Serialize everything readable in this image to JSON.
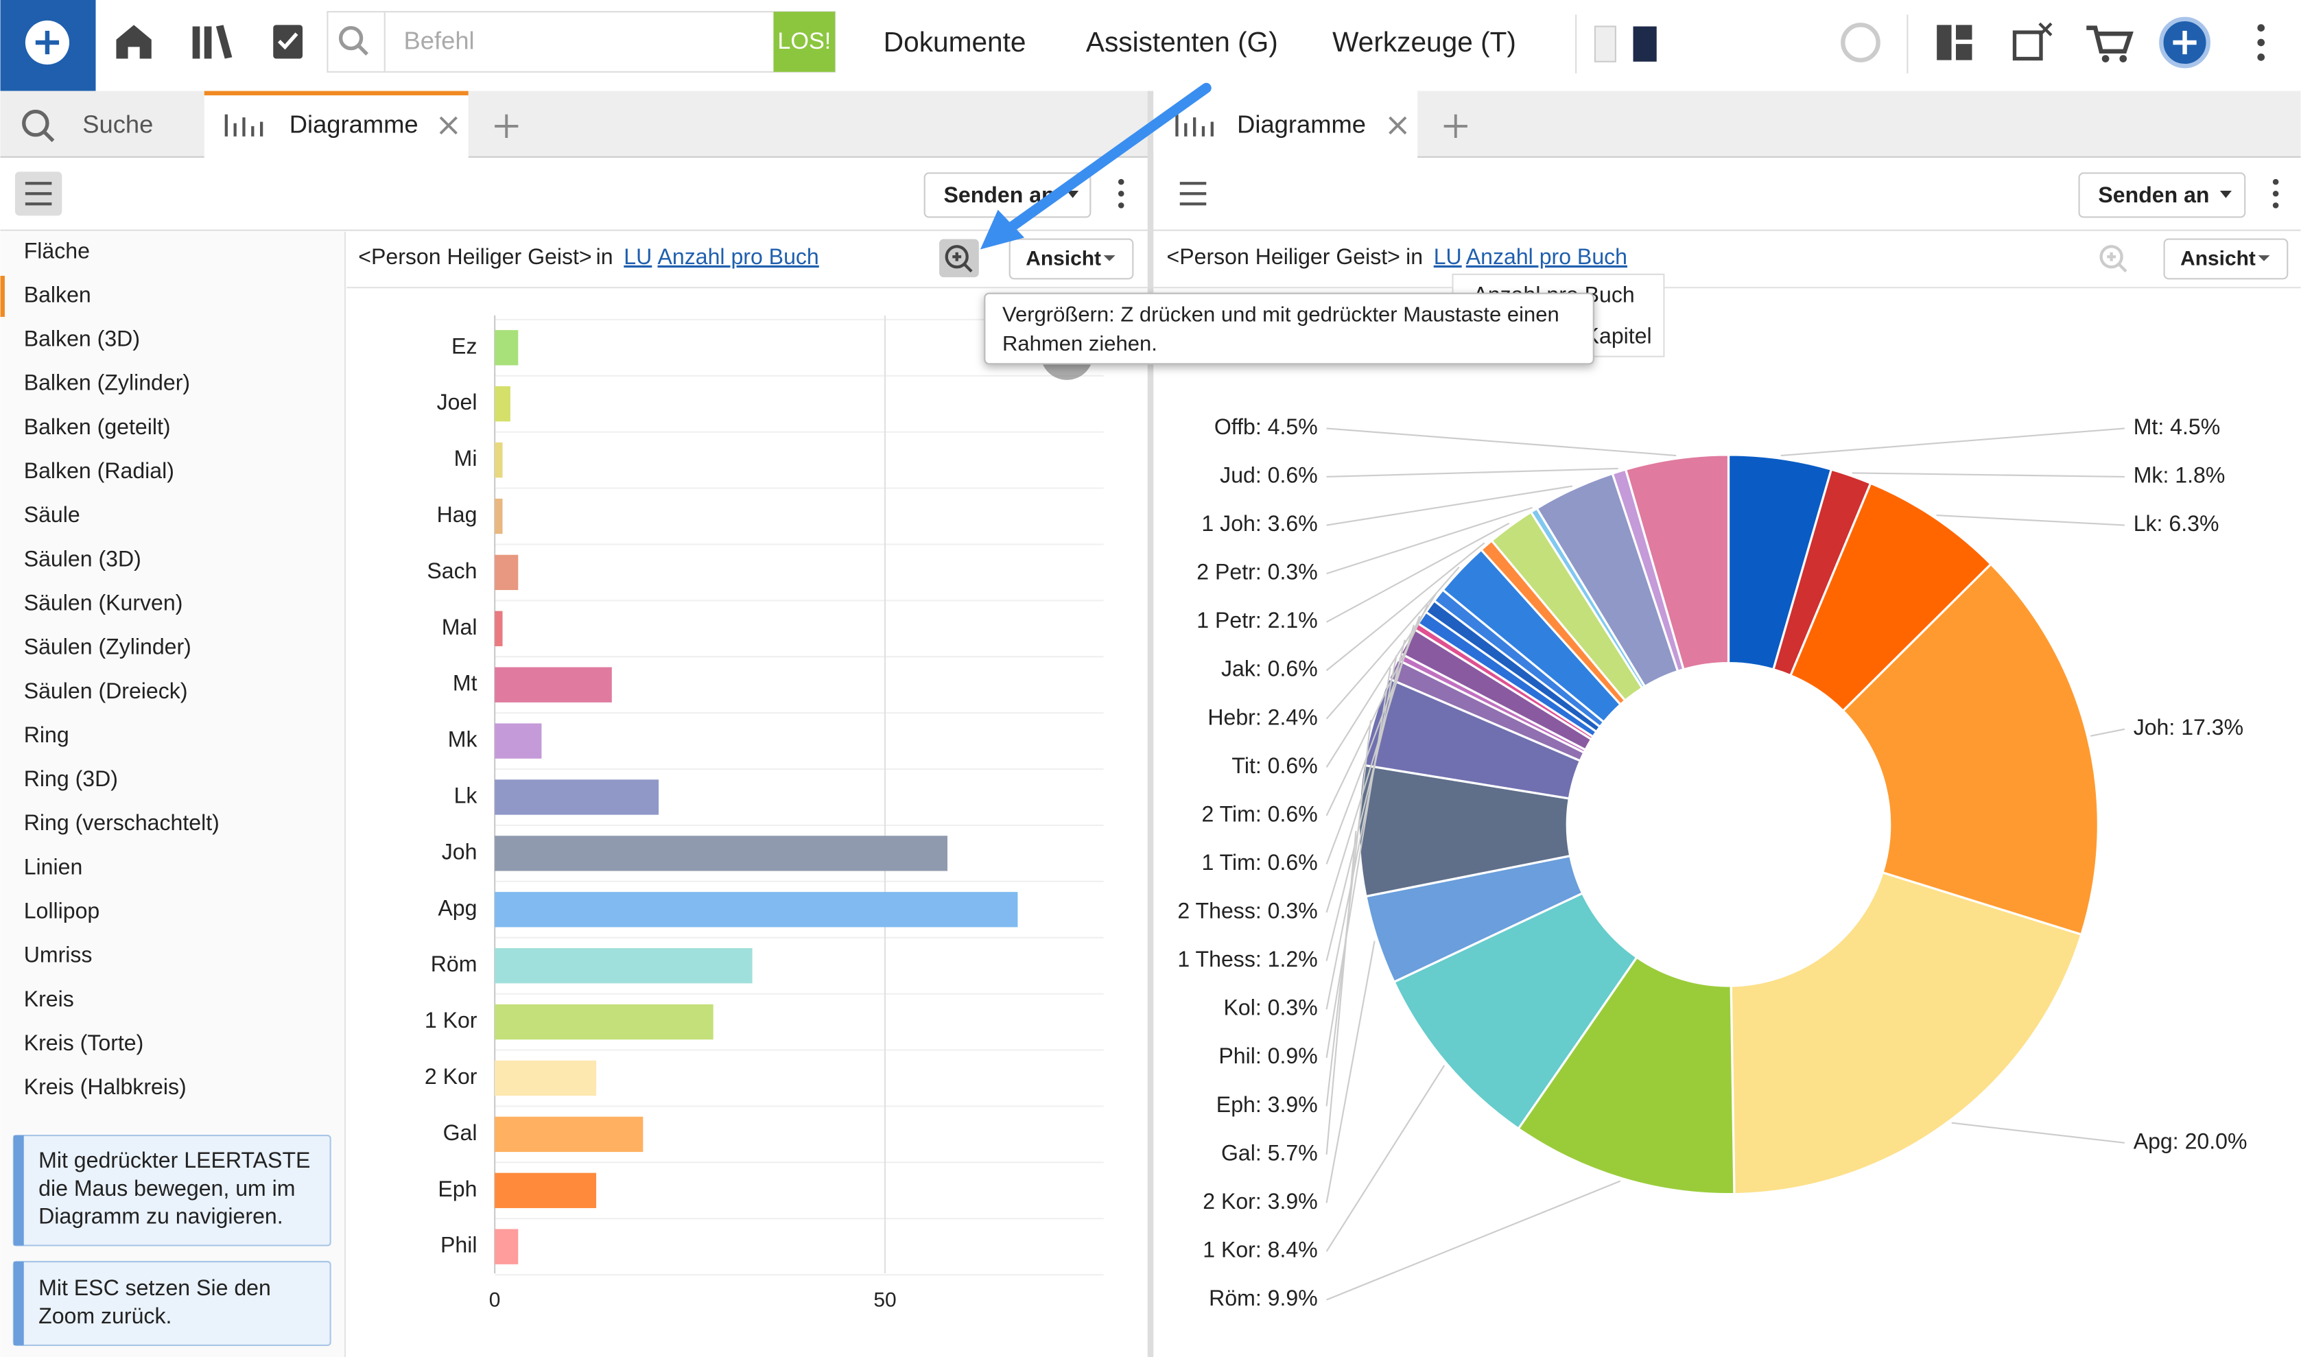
{
  "toolbar": {
    "search_placeholder": "Befehl",
    "go": "LOS!",
    "menu": [
      "Dokumente",
      "Assistenten (G)",
      "Werkzeuge (T)"
    ]
  },
  "tabs_left": [
    "Suche",
    "Diagramme"
  ],
  "tabs_right": [
    "Diagramme"
  ],
  "send": "Senden an",
  "view": "Ansicht",
  "query": {
    "prefix": "<Person Heiliger Geist>",
    "in": "in",
    "lu": "LU",
    "measure": "Anzahl pro Buch"
  },
  "dropdown": [
    "Anzahl pro Buch",
    "Anzahl pro Kapitel"
  ],
  "tooltip": "Vergrößern: Z drücken und mit gedrückter Maustaste einen Rahmen ziehen.",
  "sidebar": {
    "items": [
      "Fläche",
      "Balken",
      "Balken (3D)",
      "Balken (Zylinder)",
      "Balken (geteilt)",
      "Balken (Radial)",
      "Säule",
      "Säulen (3D)",
      "Säulen (Kurven)",
      "Säulen (Zylinder)",
      "Säulen (Dreieck)",
      "Ring",
      "Ring (3D)",
      "Ring (verschachtelt)",
      "Linien",
      "Lollipop",
      "Umriss",
      "Kreis",
      "Kreis (Torte)",
      "Kreis (Halbkreis)"
    ],
    "hints": [
      "Mit gedrückter LEERTASTE die Maus bewegen, um im Diagramm zu navigieren.",
      "Mit ESC setzen Sie den Zoom zurück."
    ]
  },
  "chart_data": [
    {
      "type": "bar",
      "orientation": "horizontal",
      "categories": [
        "Ez",
        "Joel",
        "Mi",
        "Hag",
        "Sach",
        "Mal",
        "Mt",
        "Mk",
        "Lk",
        "Joh",
        "Apg",
        "Röm",
        "1 Kor",
        "2 Kor",
        "Gal",
        "Eph",
        "Phil"
      ],
      "values": [
        3,
        2,
        1,
        1,
        3,
        1,
        15,
        6,
        21,
        58,
        67,
        33,
        28,
        13,
        19,
        13,
        3
      ],
      "colors": [
        "#a8e07a",
        "#d4e06a",
        "#e8d880",
        "#e8b880",
        "#e89880",
        "#e87a80",
        "#e07a9f",
        "#c49ad8",
        "#9098c8",
        "#909aaf",
        "#80baf0",
        "#a0e0dc",
        "#c4e07a",
        "#fde8b0",
        "#ffb060",
        "#ff8a3c",
        "#ff9c9c"
      ],
      "xlim": [
        0,
        78
      ],
      "xticks": [
        0,
        50
      ],
      "grid": true
    },
    {
      "type": "pie",
      "donut": true,
      "values": [
        4.5,
        1.8,
        6.3,
        17.3,
        20.0,
        9.9,
        8.4,
        3.9,
        5.7,
        3.9,
        0.9,
        0.3,
        1.2,
        0.3,
        0.6,
        0.6,
        0.6,
        2.4,
        0.6,
        2.1,
        0.3,
        3.6,
        0.6,
        4.5
      ],
      "value_labels": [
        "Mt: 4.5%",
        "Mk: 1.8%",
        "Lk: 6.3%",
        "Joh: 17.3%",
        "Apg: 20.0%",
        "Röm: 9.9%",
        "1 Kor: 8.4%",
        "2 Kor: 3.9%",
        "Gal: 5.7%",
        "Eph: 3.9%",
        "Phil: 0.9%",
        "Kol: 0.3%",
        "1 Thess: 1.2%",
        "2 Thess: 0.3%",
        "1 Tim: 0.6%",
        "2 Tim: 0.6%",
        "Tit: 0.6%",
        "Hebr: 2.4%",
        "Jak: 0.6%",
        "1 Petr: 2.1%",
        "2 Petr: 0.3%",
        "1 Joh: 3.6%",
        "Jud: 0.6%",
        "Offb: 4.5%"
      ],
      "colors": [
        "#0a5cc4",
        "#d03030",
        "#ff6600",
        "#ff9a30",
        "#fde08a",
        "#9acc3a",
        "#66cccc",
        "#6a9edc",
        "#5f6f8a",
        "#7070b0",
        "#9070b0",
        "#c070c0",
        "#8a5aa0",
        "#e05090",
        "#2a70d8",
        "#1f5fc0",
        "#3a80e0",
        "#3080e0",
        "#ff8a3c",
        "#c4e07a",
        "#80c8f0",
        "#9098c8",
        "#c49ad8",
        "#e07a9f"
      ]
    }
  ]
}
